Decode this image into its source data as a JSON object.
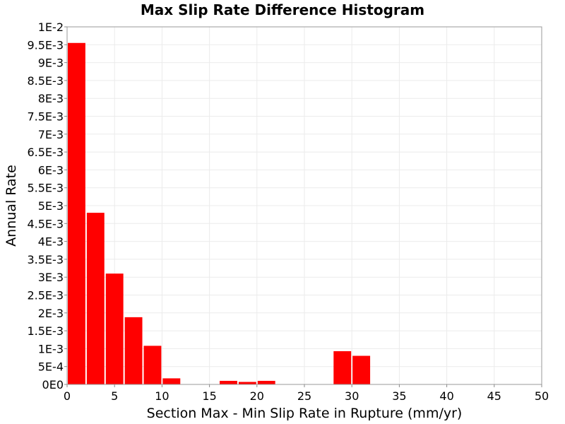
{
  "chart_data": {
    "type": "bar",
    "title": "Max Slip Rate Difference Histogram",
    "xlabel": "Section Max - Min Slip Rate in Rupture (mm/yr)",
    "ylabel": "Annual Rate",
    "xlim": [
      0,
      50
    ],
    "ylim": [
      0,
      0.01
    ],
    "bin_width": 2,
    "x_ticks": [
      {
        "value": 0,
        "label": "0"
      },
      {
        "value": 5,
        "label": "5"
      },
      {
        "value": 10,
        "label": "10"
      },
      {
        "value": 15,
        "label": "15"
      },
      {
        "value": 20,
        "label": "20"
      },
      {
        "value": 25,
        "label": "25"
      },
      {
        "value": 30,
        "label": "30"
      },
      {
        "value": 35,
        "label": "35"
      },
      {
        "value": 40,
        "label": "40"
      },
      {
        "value": 45,
        "label": "45"
      },
      {
        "value": 50,
        "label": "50"
      }
    ],
    "y_ticks": [
      {
        "value": 0,
        "label": "0E0"
      },
      {
        "value": 0.0005,
        "label": "5E-4"
      },
      {
        "value": 0.001,
        "label": "1E-3"
      },
      {
        "value": 0.0015,
        "label": "1.5E-3"
      },
      {
        "value": 0.002,
        "label": "2E-3"
      },
      {
        "value": 0.0025,
        "label": "2.5E-3"
      },
      {
        "value": 0.003,
        "label": "3E-3"
      },
      {
        "value": 0.0035,
        "label": "3.5E-3"
      },
      {
        "value": 0.004,
        "label": "4E-3"
      },
      {
        "value": 0.0045,
        "label": "4.5E-3"
      },
      {
        "value": 0.005,
        "label": "5E-3"
      },
      {
        "value": 0.0055,
        "label": "5.5E-3"
      },
      {
        "value": 0.006,
        "label": "6E-3"
      },
      {
        "value": 0.0065,
        "label": "6.5E-3"
      },
      {
        "value": 0.007,
        "label": "7E-3"
      },
      {
        "value": 0.0075,
        "label": "7.5E-3"
      },
      {
        "value": 0.008,
        "label": "8E-3"
      },
      {
        "value": 0.0085,
        "label": "8.5E-3"
      },
      {
        "value": 0.009,
        "label": "9E-3"
      },
      {
        "value": 0.0095,
        "label": "9.5E-3"
      },
      {
        "value": 0.01,
        "label": "1E-2"
      }
    ],
    "bins": [
      {
        "x": 1,
        "value": 0.00955
      },
      {
        "x": 3,
        "value": 0.0048
      },
      {
        "x": 5,
        "value": 0.0031
      },
      {
        "x": 7,
        "value": 0.00188
      },
      {
        "x": 9,
        "value": 0.00108
      },
      {
        "x": 11,
        "value": 0.00017
      },
      {
        "x": 17,
        "value": 0.0001
      },
      {
        "x": 19,
        "value": 7e-05
      },
      {
        "x": 21,
        "value": 0.0001
      },
      {
        "x": 29,
        "value": 0.00093
      },
      {
        "x": 31,
        "value": 0.0008
      }
    ],
    "bar_color": "#ff0000",
    "grid": true,
    "grid_color": "#ebebeb",
    "legend": "none"
  }
}
